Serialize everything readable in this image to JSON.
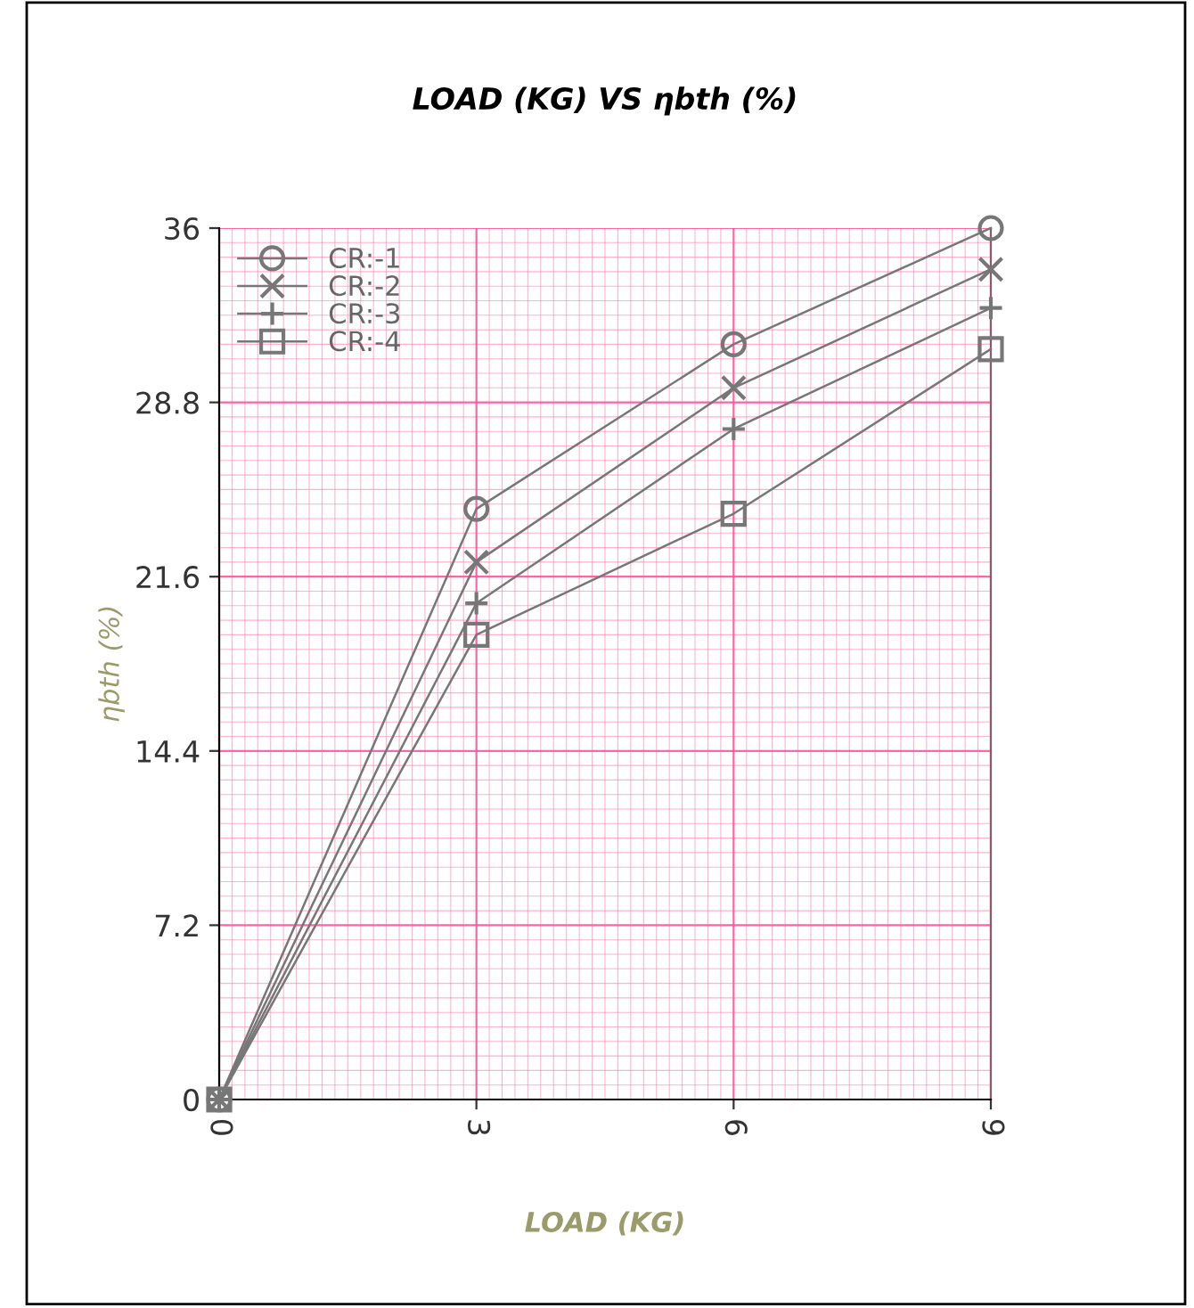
{
  "chart_data": {
    "type": "line",
    "title": "LOAD (KG) VS ηbth (%)",
    "xlabel": "LOAD (KG)",
    "ylabel": "ηbth (%)",
    "x": [
      0,
      3,
      6,
      9
    ],
    "series": [
      {
        "name": "CR:-1",
        "color": "#777777",
        "marker": "circle",
        "values": [
          0,
          24.4,
          31.2,
          36.0
        ]
      },
      {
        "name": "CR:-2",
        "color": "#777777",
        "marker": "cross",
        "values": [
          0,
          22.2,
          29.4,
          34.3
        ]
      },
      {
        "name": "CR:-3",
        "color": "#777777",
        "marker": "plus",
        "values": [
          0,
          20.5,
          27.7,
          32.7
        ]
      },
      {
        "name": "CR:-4",
        "color": "#777777",
        "marker": "square",
        "values": [
          0,
          19.2,
          24.2,
          31.0
        ]
      }
    ],
    "xlim": [
      0,
      9
    ],
    "ylim": [
      0,
      36
    ],
    "xticks": [
      0,
      3,
      6,
      9
    ],
    "yticks": [
      0,
      7.2,
      14.4,
      21.6,
      28.8,
      36
    ],
    "grid": true,
    "legend": "top left",
    "line_style": "solid"
  }
}
